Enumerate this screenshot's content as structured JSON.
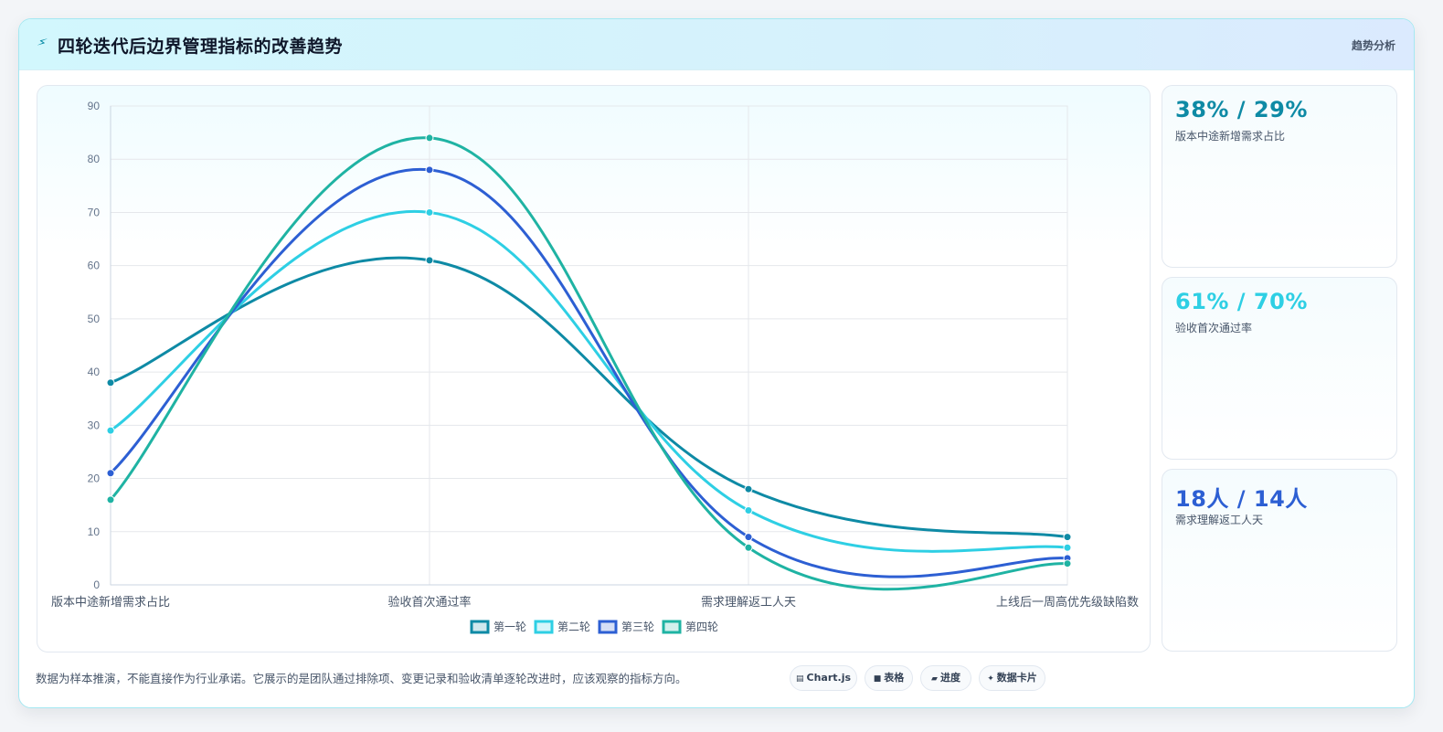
{
  "header": {
    "icon": "lightning-icon",
    "title": "四轮迭代后边界管理指标的改善趋势",
    "tag": "趋势分析"
  },
  "chart_data": {
    "type": "line",
    "title": "",
    "xlabel": "",
    "ylabel": "",
    "categories": [
      "版本中途新增需求占比",
      "验收首次通过率",
      "需求理解返工人天",
      "上线后一周高优先级缺陷数"
    ],
    "ylim": [
      0,
      90
    ],
    "yticks": [
      0,
      10,
      20,
      30,
      40,
      50,
      60,
      70,
      80,
      90
    ],
    "grid": true,
    "legend_position": "bottom",
    "series": [
      {
        "name": "第一轮",
        "color": "#0e8aa5",
        "values": [
          38,
          61,
          18,
          9
        ]
      },
      {
        "name": "第二轮",
        "color": "#2ecfe4",
        "values": [
          29,
          70,
          14,
          7
        ]
      },
      {
        "name": "第三轮",
        "color": "#2d5fd3",
        "values": [
          21,
          78,
          9,
          5
        ]
      },
      {
        "name": "第四轮",
        "color": "#1fb3a3",
        "values": [
          16,
          84,
          7,
          4
        ]
      }
    ]
  },
  "stats": [
    {
      "value": "38% / 29%",
      "label": "版本中途新增需求占比",
      "color": "#0e8aa5"
    },
    {
      "value": "61% / 70%",
      "label": "验收首次通过率",
      "color": "#2ecfe4"
    },
    {
      "value": "18人 / 14人",
      "label": "需求理解返工人天",
      "color": "#2d5fd3"
    }
  ],
  "footer": {
    "note": "数据为样本推演，不能直接作为行业承诺。它展示的是团队通过排除项、变更记录和验收清单逐轮改进时，应该观察的指标方向。",
    "pills": [
      {
        "icon": "▤",
        "label": "Chart.js"
      },
      {
        "icon": "■",
        "label": "表格"
      },
      {
        "icon": "▰",
        "label": "进度"
      },
      {
        "icon": "✦",
        "label": "数据卡片"
      }
    ]
  }
}
